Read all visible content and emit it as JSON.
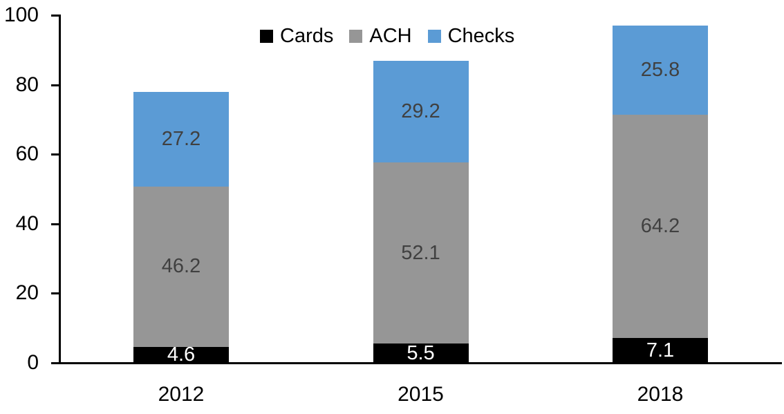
{
  "chart_data": {
    "type": "bar",
    "stacked": true,
    "title": "",
    "xlabel": "",
    "ylabel": "",
    "grid": false,
    "categories": [
      "2012",
      "2015",
      "2018"
    ],
    "series": [
      {
        "name": "Cards",
        "values": [
          4.6,
          5.5,
          7.1
        ],
        "color": "#000000",
        "label_color": "#FFFFFF"
      },
      {
        "name": "ACH",
        "values": [
          46.2,
          52.1,
          64.2
        ],
        "color": "#969696",
        "label_color": "#404040"
      },
      {
        "name": "Checks",
        "values": [
          27.2,
          29.2,
          25.8
        ],
        "color": "#5B9BD5",
        "label_color": "#404040"
      }
    ],
    "totals": [
      78.0,
      86.8,
      97.1
    ],
    "ylim": [
      0,
      100
    ],
    "yticks": [
      0,
      20,
      40,
      60,
      80,
      100
    ],
    "legend": {
      "position": "top",
      "entries": [
        "Cards",
        "ACH",
        "Checks"
      ]
    }
  }
}
